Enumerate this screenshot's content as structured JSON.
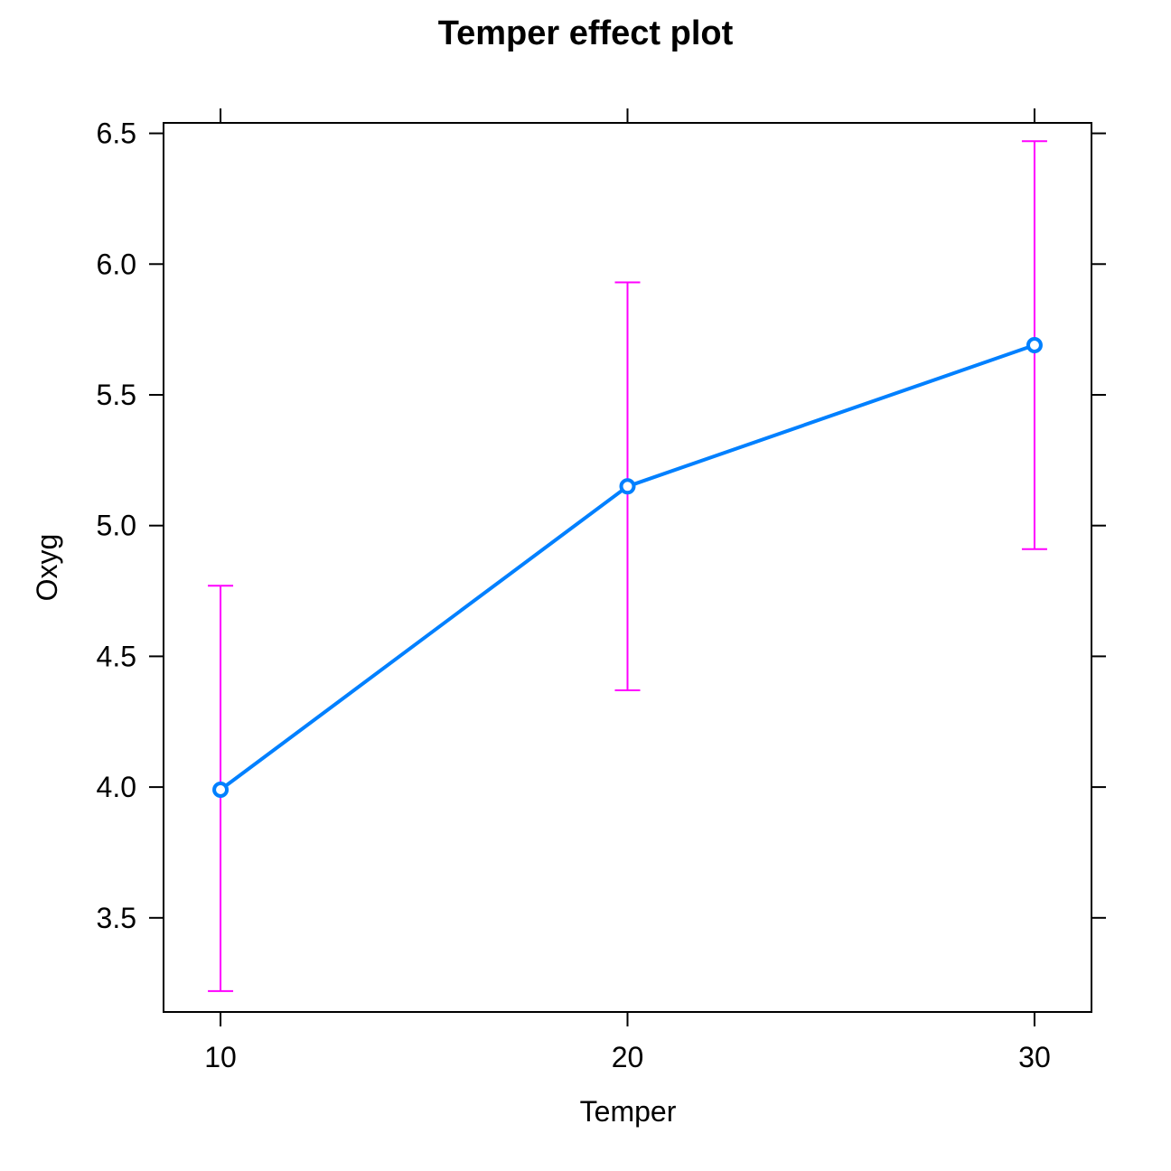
{
  "chart_data": {
    "type": "line",
    "title": "Temper effect plot",
    "xlabel": "Temper",
    "ylabel": "Oxyg",
    "x": [
      10,
      20,
      30
    ],
    "x_ticks": [
      "10",
      "20",
      "30"
    ],
    "y_ticks": [
      "3.5",
      "4.0",
      "4.5",
      "5.0",
      "5.5",
      "6.0",
      "6.5"
    ],
    "xlim": [
      8.6,
      31.4
    ],
    "ylim": [
      3.14,
      6.54
    ],
    "grid": false,
    "series": [
      {
        "values": [
          3.99,
          5.15,
          5.69
        ],
        "lower": [
          3.22,
          4.37,
          4.91
        ],
        "upper": [
          4.77,
          5.93,
          6.47
        ]
      }
    ],
    "colors": {
      "line": "#0080ff",
      "error_bars": "#ff00ff",
      "axis": "#000000"
    }
  }
}
